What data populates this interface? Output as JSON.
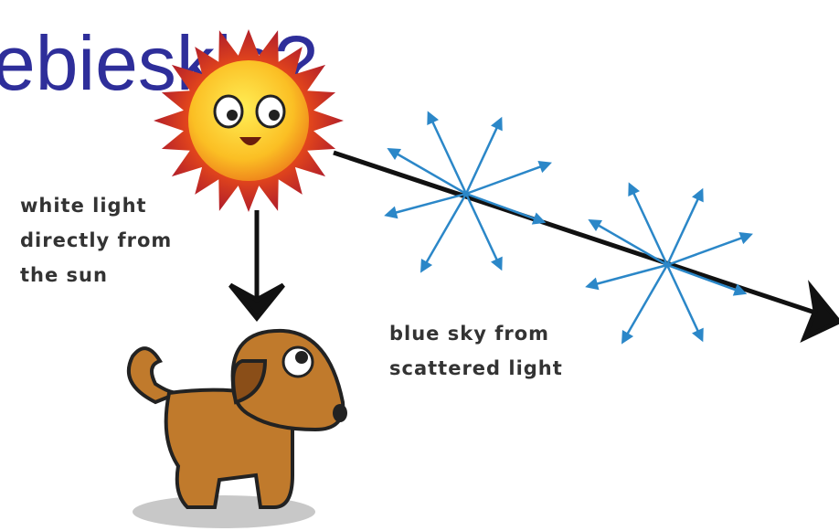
{
  "title": "ebieskie?",
  "labels": {
    "direct": [
      "white light",
      "directly from",
      "the sun"
    ],
    "scattered": [
      "blue sky from",
      "scattered light"
    ]
  }
}
